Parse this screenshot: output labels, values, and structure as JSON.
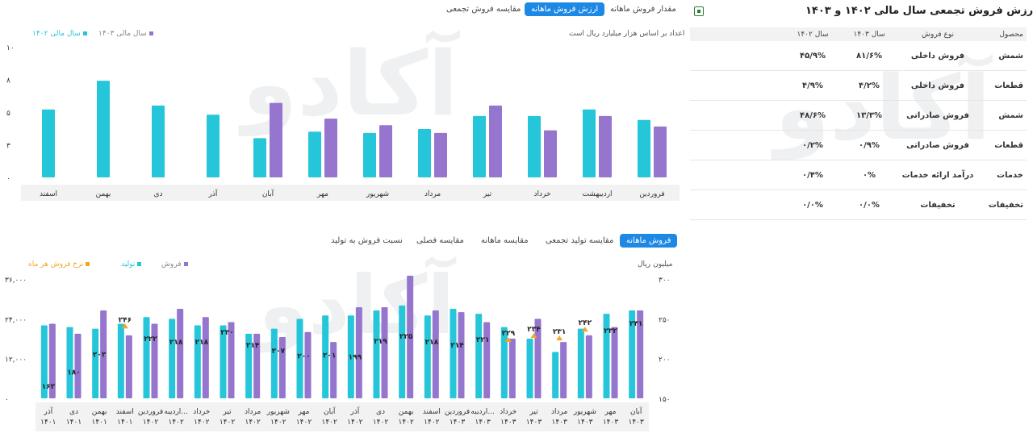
{
  "right_panel": {
    "title": "مقایسه ارزش فروش تجمعی سال مالی ۱۴۰۲ و ۱۴۰۳",
    "headers": [
      "محصول",
      "نوع فروش",
      "سال ۱۴۰۳",
      "سال ۱۴۰۲"
    ],
    "rows": [
      [
        "شمش",
        "فروش داخلی",
        "۸۱/۶%",
        "۴۵/۹%"
      ],
      [
        "قطعات",
        "فروش داخلی",
        "۴/۲%",
        "۴/۹%"
      ],
      [
        "شمش",
        "فروش صادراتی",
        "۱۳/۳%",
        "۴۸/۶%"
      ],
      [
        "قطعات",
        "فروش صادراتی",
        "۰/۹%",
        "۰/۲%"
      ],
      [
        "خدمات",
        "درآمد ارائه خدمات",
        "۰%",
        "۰/۴%"
      ],
      [
        "تخفیفات",
        "تخفیفات",
        "۰/۰%",
        "۰/۰%"
      ]
    ]
  },
  "top_chart": {
    "tabs": [
      "مقدار فروش ماهانه",
      "ارزش فروش ماهانه",
      "مقایسه فروش تجمعی"
    ],
    "active_tab": 1,
    "note": "اعداد بر اساس هزار میلیارد ریال است",
    "legend": [
      "سال مالی ۱۴۰۳",
      "سال مالی ۱۴۰۲"
    ],
    "colors": {
      "y1403": "#9575cd",
      "y1402": "#26c6da"
    }
  },
  "bottom_chart": {
    "tabs": [
      "فروش ماهانه",
      "مقایسه تولید تجمعی",
      "مقایسه ماهانه",
      "مقایسه فصلی",
      "نسبت فروش به تولید"
    ],
    "active_tab": 0,
    "left_unit": "میلیون ریال",
    "legend": [
      "فروش",
      "تولید",
      "نرخ فروش هر ماه"
    ],
    "colors": {
      "sales": "#9575cd",
      "production": "#26c6da",
      "rate": "#f5a623"
    }
  },
  "chart_data": [
    {
      "type": "bar",
      "title": "",
      "categories": [
        "فروردین",
        "اردیبهشت",
        "خرداد",
        "تیر",
        "مرداد",
        "شهریور",
        "مهر",
        "آبان",
        "آذر",
        "دی",
        "بهمن",
        "اسفند"
      ],
      "series": [
        {
          "name": "سال مالی ۱۴۰۲",
          "values": [
            4.4,
            5.2,
            4.7,
            4.7,
            3.7,
            3.4,
            3.5,
            3.0,
            4.8,
            5.5,
            7.4,
            5.2
          ]
        },
        {
          "name": "سال مالی ۱۴۰۳",
          "values": [
            3.9,
            4.7,
            3.6,
            5.5,
            3.4,
            4.0,
            4.5,
            5.7,
            null,
            null,
            null,
            null
          ]
        }
      ],
      "yticks": [
        "۰",
        "۳",
        "۵",
        "۸",
        "۱۰"
      ],
      "ylim": [
        0,
        10
      ],
      "grid": false,
      "legend_position": "top-left"
    },
    {
      "type": "bar",
      "title": "",
      "categories": [
        "آذر ۱۴۰۱",
        "دی ۱۴۰۱",
        "بهمن ۱۴۰۱",
        "اسفند ۱۴۰۱",
        "فروردین ۱۴۰۲",
        "اردیبه... ۱۴۰۲",
        "خرداد ۱۴۰۲",
        "تیر ۱۴۰۲",
        "مرداد ۱۴۰۲",
        "شهریور ۱۴۰۲",
        "مهر ۱۴۰۲",
        "آبان ۱۴۰۲",
        "آذر ۱۴۰۲",
        "دی ۱۴۰۲",
        "بهمن ۱۴۰۲",
        "اسفند ۱۴۰۲",
        "فروردین ۱۴۰۳",
        "اردیبه... ۱۴۰۳",
        "خرداد ۱۴۰۳",
        "تیر ۱۴۰۳",
        "مرداد ۱۴۰۳",
        "شهریور ۱۴۰۳",
        "مهر ۱۴۰۳",
        "آبان ۱۴۰۳"
      ],
      "series": [
        {
          "name": "تولید",
          "values": [
            22000,
            21500,
            21000,
            22500,
            24500,
            24000,
            22000,
            22000,
            19500,
            21000,
            24000,
            25000,
            25000,
            26500,
            28000,
            25000,
            27000,
            25500,
            21500,
            18000,
            14000,
            21000,
            25500,
            26500
          ]
        },
        {
          "name": "فروش",
          "values": [
            22500,
            19500,
            26500,
            19000,
            22500,
            27000,
            24500,
            23000,
            19500,
            18500,
            20000,
            17000,
            27500,
            27500,
            37000,
            26500,
            26000,
            23000,
            18000,
            24000,
            17000,
            19000,
            21500,
            26500
          ]
        },
        {
          "name": "نرخ فروش هر ماه",
          "values": [
            162,
            180,
            202,
            246,
            222,
            218,
            218,
            230,
            214,
            207,
            200,
            201,
            199,
            219,
            225,
            218,
            214,
            221,
            229,
            234,
            231,
            242,
            232,
            241
          ]
        }
      ],
      "rate_labels": [
        "۱۶۲",
        "۱۸۰",
        "۲۰۲",
        "۲۴۶",
        "۲۲۲",
        "۲۱۸",
        "۲۱۸",
        "۲۳۰",
        "۲۱۴",
        "۲۰۷",
        "۲۰۰",
        "۲۰۱",
        "۱۹۹",
        "۲۱۹",
        "۲۲۵",
        "۲۱۸",
        "۲۱۴",
        "۲۲۱",
        "۲۲۹",
        "۲۳۴",
        "۲۳۱",
        "۲۴۲",
        "۲۳۲",
        "۲۴۱"
      ],
      "rate_marker_shown": [
        false,
        false,
        false,
        true,
        false,
        false,
        false,
        false,
        false,
        false,
        false,
        false,
        false,
        false,
        false,
        false,
        false,
        false,
        true,
        true,
        true,
        true,
        false,
        false
      ],
      "yticks_left": [
        "۰",
        "۱۲,۰۰۰",
        "۲۴,۰۰۰",
        "۳۶,۰۰۰"
      ],
      "ylim_left": [
        0,
        36000
      ],
      "yticks_right": [
        "۱۵۰",
        "۲۰۰",
        "۲۵۰",
        "۳۰۰"
      ],
      "ylim_right": [
        150,
        300
      ],
      "legend_position": "top-left"
    }
  ]
}
